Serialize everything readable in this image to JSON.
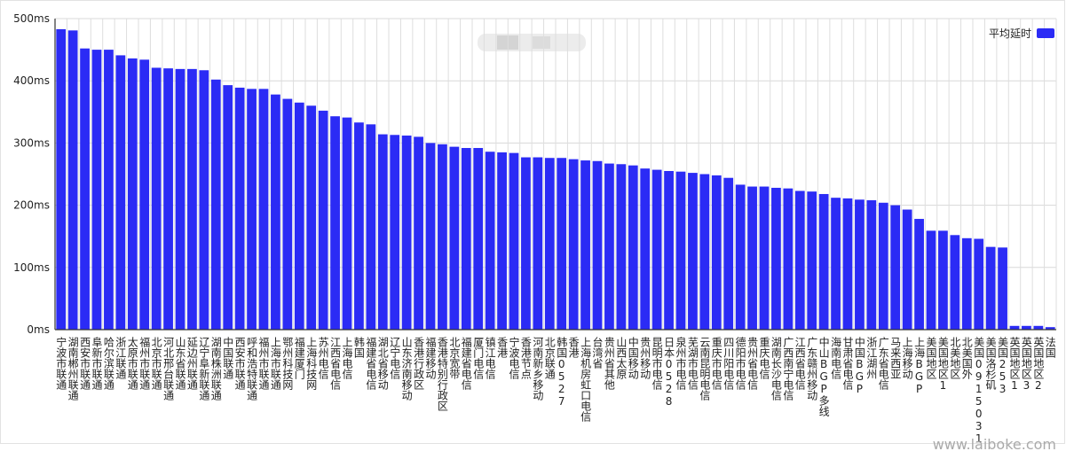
{
  "chart_data": {
    "type": "bar",
    "categories": [
      "宁波市联通",
      "湖南郴州联通",
      "西安市联通",
      "阜新市联通",
      "哈尔滨联通",
      "浙江联通",
      "太原市联通",
      "福州市联通",
      "北京市联通",
      "河北邢台联通",
      "山东省联通",
      "延边州联通",
      "辽宁阜新联通",
      "湖南株洲联通",
      "中国联通",
      "西安市联通",
      "呼和浩特联通",
      "福州市联通",
      "上海市联通",
      "鄂州科技网",
      "福建厦门",
      "上海科技网",
      "苏州电信",
      "江西省电信",
      "上海电信",
      "韩国",
      "福建省电信",
      "湖北省移动",
      "辽宁电信",
      "山东济南移动",
      "香港行政区",
      "福建移动",
      "香港特别行政区",
      "北京宽带",
      "福建省电信",
      "厦门电信",
      "镇江电信",
      "香港",
      "宁波电信",
      "香港节点",
      "河南新乡移动",
      "北京联通",
      "韩国0527",
      "香港",
      "上海机房虹口电信",
      "台湾省",
      "贵州省其他",
      "山西太原",
      "中国移动",
      "贵州移动",
      "昆明市电信",
      "日本0528",
      "泉州市电信",
      "芜湖市电信",
      "云南昆明电信",
      "重庆市电信",
      "四川阳电信",
      "德阳市电信",
      "贵州省电信",
      "重庆电信",
      "湖南长沙电信",
      "广西南宁电信",
      "江西省电信",
      "广东赣州移动",
      "中山BGP多线",
      "海南电信",
      "甘肃省电信",
      "中国BGP",
      "浙江湖州",
      "广东省电信",
      "马来西亚",
      "上海移动",
      "上海BGP",
      "美国地区",
      "美国地区1",
      "北美地区",
      "北美国外",
      "美国0915031",
      "美国洛杉矶",
      "美国253",
      "英国地区1",
      "英国地区3",
      "英国地区2",
      "法国"
    ],
    "series": [
      {
        "name": "平均延时",
        "color": "#2b2bf5",
        "values": [
          483,
          481,
          452,
          450,
          450,
          441,
          436,
          434,
          421,
          420,
          419,
          419,
          417,
          402,
          393,
          389,
          387,
          387,
          378,
          371,
          365,
          360,
          352,
          343,
          341,
          333,
          330,
          314,
          313,
          312,
          310,
          300,
          298,
          294,
          292,
          292,
          286,
          285,
          284,
          277,
          277,
          276,
          276,
          274,
          272,
          271,
          267,
          266,
          264,
          259,
          257,
          255,
          254,
          252,
          250,
          248,
          244,
          233,
          230,
          230,
          228,
          227,
          223,
          222,
          218,
          212,
          211,
          209,
          208,
          204,
          200,
          193,
          178,
          159,
          159,
          152,
          147,
          146,
          133,
          132,
          6,
          6,
          6,
          4
        ]
      }
    ],
    "ylim": [
      0,
      500
    ],
    "yticks": [
      {
        "value": 0,
        "label": "0ms"
      },
      {
        "value": 100,
        "label": "100ms"
      },
      {
        "value": 200,
        "label": "200ms"
      },
      {
        "value": 300,
        "label": "300ms"
      },
      {
        "value": 400,
        "label": "400ms"
      },
      {
        "value": 500,
        "label": "500ms"
      }
    ],
    "grid": true,
    "legend": "top-right",
    "watermark": "www.laiboke.com"
  }
}
